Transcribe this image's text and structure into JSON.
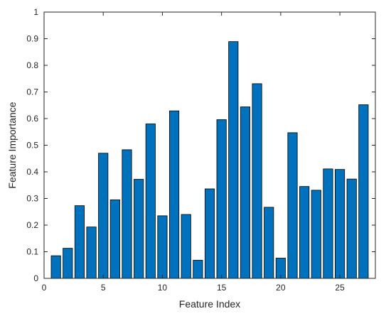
{
  "chart_data": {
    "type": "bar",
    "title": "",
    "xlabel": "Feature Index",
    "ylabel": "Feature Importance",
    "xlim": [
      0,
      28
    ],
    "ylim": [
      0,
      1
    ],
    "x": [
      1,
      2,
      3,
      4,
      5,
      6,
      7,
      8,
      9,
      10,
      11,
      12,
      13,
      14,
      15,
      16,
      17,
      18,
      19,
      20,
      21,
      22,
      23,
      24,
      25,
      26,
      27
    ],
    "values": [
      0.085,
      0.113,
      0.273,
      0.193,
      0.47,
      0.295,
      0.483,
      0.372,
      0.58,
      0.235,
      0.629,
      0.24,
      0.068,
      0.336,
      0.596,
      0.889,
      0.644,
      0.731,
      0.267,
      0.076,
      0.547,
      0.345,
      0.331,
      0.411,
      0.409,
      0.373,
      0.652
    ],
    "xticks": [
      0,
      5,
      10,
      15,
      20,
      25
    ],
    "yticks": [
      0,
      0.1,
      0.2,
      0.3,
      0.4,
      0.5,
      0.6,
      0.7,
      0.8,
      0.9,
      1
    ],
    "xtick_labels": [
      "0",
      "5",
      "10",
      "15",
      "20",
      "25"
    ],
    "ytick_labels": [
      "0",
      "0.1",
      "0.2",
      "0.3",
      "0.4",
      "0.5",
      "0.6",
      "0.7",
      "0.8",
      "0.9",
      "1"
    ],
    "bar_color": "#0072BD",
    "grid": false
  }
}
